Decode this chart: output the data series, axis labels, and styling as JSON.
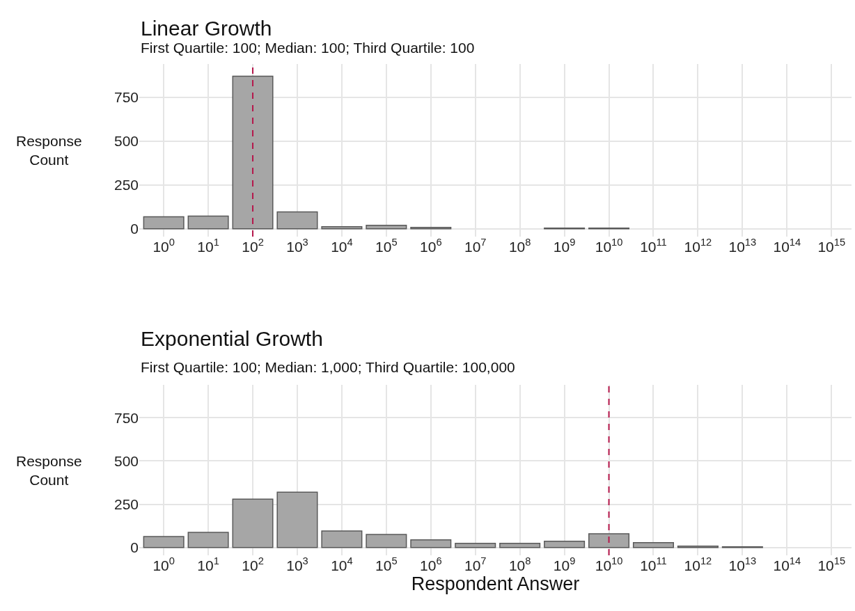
{
  "chart_data": [
    {
      "type": "bar",
      "title": "Linear Growth",
      "subtitle": "First Quartile: 100; Median: 100; Third Quartile: 100",
      "ylabel": "Response Count",
      "categories": [
        "10$^{0}$",
        "10$^{1}$",
        "10$^{2}$",
        "10$^{3}$",
        "10$^{4}$",
        "10$^{5}$",
        "10$^{6}$",
        "10$^{7}$",
        "10$^{8}$",
        "10$^{9}$",
        "10$^{10}$",
        "10$^{11}$",
        "10$^{12}$",
        "10$^{13}$",
        "10$^{14}$",
        "10$^{15}$"
      ],
      "values": [
        68,
        72,
        870,
        96,
        12,
        20,
        8,
        null,
        null,
        4,
        4,
        null,
        null,
        null,
        null,
        null
      ],
      "color": "#a6a6a6",
      "ylim": [
        -45,
        940
      ],
      "yticks": [
        0,
        250,
        500,
        750
      ],
      "grid": true,
      "ref_lines": [
        {
          "axis": "x",
          "value": "10$^{2}$",
          "color": "#b5174b",
          "line_style": "dashed"
        }
      ]
    },
    {
      "type": "bar",
      "title": "Exponential Growth",
      "subtitle": "First Quartile: 100; Median: 1,000; Third Quartile: 100,000",
      "ylabel": "Response Count",
      "xlabel": "Respondent Answer",
      "categories": [
        "10$^{0}$",
        "10$^{1}$",
        "10$^{2}$",
        "10$^{3}$",
        "10$^{4}$",
        "10$^{5}$",
        "10$^{6}$",
        "10$^{7}$",
        "10$^{8}$",
        "10$^{9}$",
        "10$^{10}$",
        "10$^{11}$",
        "10$^{12}$",
        "10$^{13}$",
        "10$^{14}$",
        "10$^{15}$"
      ],
      "values": [
        64,
        88,
        280,
        320,
        96,
        76,
        44,
        24,
        24,
        36,
        80,
        28,
        8,
        4,
        null,
        null
      ],
      "color": "#a6a6a6",
      "ylim": [
        -45,
        940
      ],
      "yticks": [
        0,
        250,
        500,
        750
      ],
      "grid": true,
      "ref_lines": [
        {
          "axis": "x",
          "value": "10$^{10}$",
          "color": "#b5174b",
          "line_style": "dashed"
        }
      ]
    }
  ]
}
